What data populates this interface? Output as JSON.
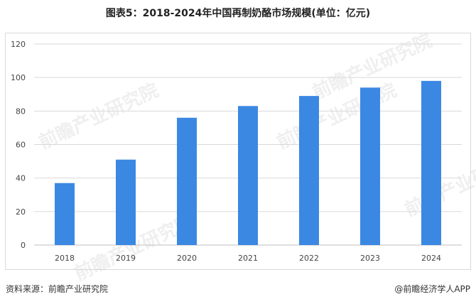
{
  "title": "图表5：2018-2024年中国再制奶酪市场规模(单位：亿元)",
  "source": "资料来源：前瞻产业研究院",
  "credit": "@前瞻经济学人APP",
  "watermark": "前瞻产业研究院",
  "colors": {
    "bar": "#3b88e3",
    "grid": "#d9d9d9",
    "axis": "#bfbfbf"
  },
  "chart_data": {
    "type": "bar",
    "title": "图表5：2018-2024年中国再制奶酪市场规模(单位：亿元)",
    "xlabel": "",
    "ylabel": "",
    "categories": [
      "2018",
      "2019",
      "2020",
      "2021",
      "2022",
      "2023",
      "2024"
    ],
    "values": [
      37,
      51,
      76,
      83,
      89,
      94,
      98
    ],
    "ylim": [
      0,
      120
    ],
    "yticks": [
      0,
      20,
      40,
      60,
      80,
      100,
      120
    ],
    "grid": true,
    "legend": "none"
  }
}
